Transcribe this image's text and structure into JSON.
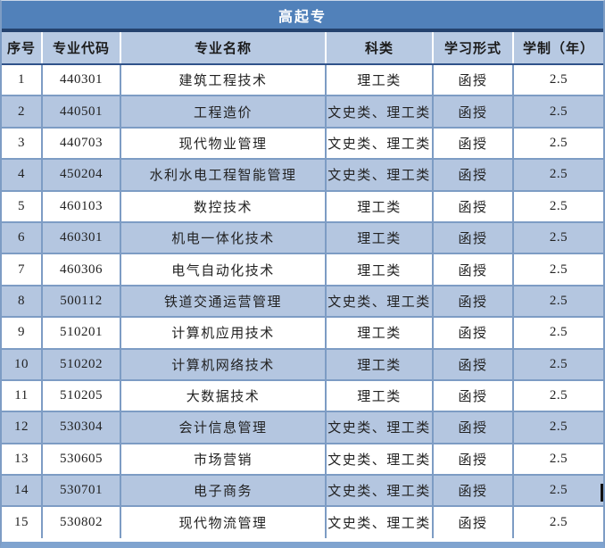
{
  "title": "高起专",
  "table": {
    "headers": [
      "序号",
      "专业代码",
      "专业名称",
      "科类",
      "学习形式",
      "学制（年）"
    ],
    "rows": [
      [
        "1",
        "440301",
        "建筑工程技术",
        "理工类",
        "函授",
        "2.5"
      ],
      [
        "2",
        "440501",
        "工程造价",
        "文史类、理工类",
        "函授",
        "2.5"
      ],
      [
        "3",
        "440703",
        "现代物业管理",
        "文史类、理工类",
        "函授",
        "2.5"
      ],
      [
        "4",
        "450204",
        "水利水电工程智能管理",
        "文史类、理工类",
        "函授",
        "2.5"
      ],
      [
        "5",
        "460103",
        "数控技术",
        "理工类",
        "函授",
        "2.5"
      ],
      [
        "6",
        "460301",
        "机电一体化技术",
        "理工类",
        "函授",
        "2.5"
      ],
      [
        "7",
        "460306",
        "电气自动化技术",
        "理工类",
        "函授",
        "2.5"
      ],
      [
        "8",
        "500112",
        "铁道交通运营管理",
        "文史类、理工类",
        "函授",
        "2.5"
      ],
      [
        "9",
        "510201",
        "计算机应用技术",
        "理工类",
        "函授",
        "2.5"
      ],
      [
        "10",
        "510202",
        "计算机网络技术",
        "理工类",
        "函授",
        "2.5"
      ],
      [
        "11",
        "510205",
        "大数据技术",
        "理工类",
        "函授",
        "2.5"
      ],
      [
        "12",
        "530304",
        "会计信息管理",
        "文史类、理工类",
        "函授",
        "2.5"
      ],
      [
        "13",
        "530605",
        "市场营销",
        "文史类、理工类",
        "函授",
        "2.5"
      ],
      [
        "14",
        "530701",
        "电子商务",
        "文史类、理工类",
        "函授",
        "2.5"
      ],
      [
        "15",
        "530802",
        "现代物流管理",
        "文史类、理工类",
        "函授",
        "2.5"
      ]
    ]
  },
  "colors": {
    "title_bg": "#5181BA",
    "title_text": "#FFFFFF",
    "dark_line": "#24426E",
    "header_bg": "#B7C9E2",
    "header_text": "#1B1B1B",
    "header_divider": "#FFFFFF",
    "header_bottom": "#31538A",
    "row_bg": "#FFFFFF",
    "row_alt_bg": "#B4C6E0",
    "grid_line": "#7D9CC4",
    "cell_text": "#222222",
    "outer_side": "#7D9CC4",
    "bottom_strip": "#7FA3CF"
  }
}
